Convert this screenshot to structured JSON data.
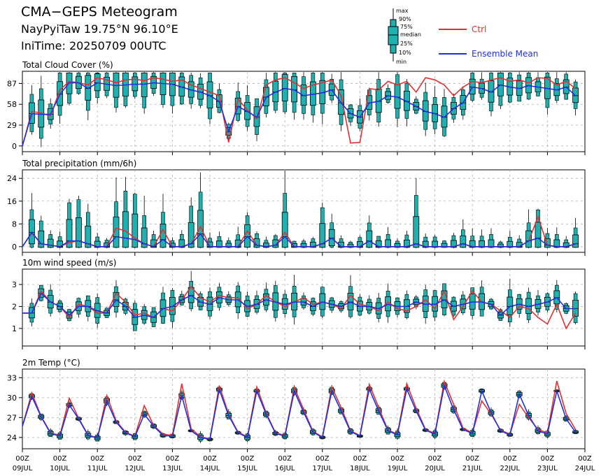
{
  "header": {
    "title": "CMA−GEPS Meteogram",
    "location": "NayPyiTaw 19.75°N 96.10°E",
    "initime": "IniTime: 20250709 00UTC"
  },
  "box_legend": {
    "labels": [
      "max",
      "90%",
      "75%",
      "median",
      "25%",
      "10%",
      "min"
    ]
  },
  "legend": [
    {
      "label": "Ctrl",
      "color": "#e03030"
    },
    {
      "label": "Ensemble Mean",
      "color": "#2030e0"
    }
  ],
  "colors": {
    "box": "#20b0b0",
    "ctrl": "#e03030",
    "mean": "#2030e0",
    "frame": "#000000",
    "grid": "#b0b0b0"
  },
  "x_axis": {
    "ticks": [
      {
        "top": "00Z",
        "bottom": "09JUL"
      },
      {
        "top": "00Z",
        "bottom": "10JUL"
      },
      {
        "top": "00Z",
        "bottom": "11JUL"
      },
      {
        "top": "00Z",
        "bottom": "12JUL"
      },
      {
        "top": "00Z",
        "bottom": "13JUL"
      },
      {
        "top": "00Z",
        "bottom": "14JUL"
      },
      {
        "top": "00Z",
        "bottom": "15JUL"
      },
      {
        "top": "00Z",
        "bottom": "16JUL"
      },
      {
        "top": "00Z",
        "bottom": "17JUL"
      },
      {
        "top": "00Z",
        "bottom": "18JUL"
      },
      {
        "top": "00Z",
        "bottom": "19JUL"
      },
      {
        "top": "00Z",
        "bottom": "20JUL"
      },
      {
        "top": "00Z",
        "bottom": "21JUL"
      },
      {
        "top": "00Z",
        "bottom": "22JUL"
      },
      {
        "top": "00Z",
        "bottom": "23JUL"
      },
      {
        "top": "00Z",
        "bottom": "24JUL"
      }
    ]
  },
  "chart_data": [
    {
      "type": "box+line",
      "title": "Total Cloud Cover (%)",
      "ylim": [
        -8,
        104
      ],
      "yticks": [
        0,
        29,
        58,
        87
      ],
      "x_start": "2025-07-09 00UTC",
      "x_step_hours": 6,
      "ctrl": [
        0,
        48,
        46,
        42,
        78,
        90,
        88,
        85,
        95,
        92,
        88,
        92,
        93,
        91,
        95,
        93,
        90,
        92,
        85,
        80,
        75,
        70,
        5,
        65,
        50,
        38,
        85,
        92,
        95,
        88,
        80,
        85,
        88,
        92,
        70,
        4,
        5,
        80,
        78,
        90,
        85,
        90,
        75,
        95,
        92,
        85,
        70,
        82,
        90,
        88,
        92,
        95,
        90,
        92,
        88,
        95,
        94,
        85,
        90,
        80
      ],
      "mean": [
        0,
        45,
        44,
        44,
        72,
        88,
        88,
        80,
        88,
        86,
        84,
        85,
        86,
        86,
        88,
        87,
        86,
        82,
        78,
        75,
        70,
        62,
        20,
        55,
        48,
        40,
        68,
        75,
        80,
        78,
        70,
        72,
        74,
        78,
        60,
        45,
        40,
        60,
        62,
        70,
        68,
        62,
        55,
        48,
        45,
        40,
        52,
        60,
        82,
        80,
        75,
        85,
        82,
        80,
        84,
        82,
        80,
        78,
        82,
        70
      ]
    },
    {
      "type": "box+line",
      "title": "Total precipitation (mm/6h)",
      "ylim": [
        -2,
        27
      ],
      "yticks": [
        0,
        8,
        16,
        24
      ],
      "x_start": "2025-07-09 00UTC",
      "x_step_hours": 6,
      "ctrl": [
        0,
        4.8,
        1,
        0.5,
        0,
        1.5,
        2,
        1,
        0,
        0,
        6.5,
        5.5,
        3,
        1,
        0,
        6,
        0,
        0,
        1,
        7,
        0,
        0,
        0,
        0,
        5.5,
        0.5,
        0,
        0.5,
        5,
        0,
        0,
        0,
        1,
        3,
        0,
        0,
        0,
        2,
        0,
        0,
        0,
        0,
        1,
        0,
        0,
        0,
        0,
        1,
        0,
        0,
        0,
        0,
        0,
        0,
        2,
        10.5,
        0.5,
        0,
        0,
        1
      ],
      "mean": [
        0,
        5,
        1,
        0.5,
        0,
        2,
        2,
        1,
        0,
        0,
        3.5,
        3,
        2.5,
        1,
        0,
        2.5,
        0,
        0,
        1,
        4.5,
        0,
        0,
        0,
        0,
        3.5,
        0.5,
        0,
        0.5,
        3.5,
        0,
        0,
        0,
        1,
        3,
        0,
        0,
        0,
        2,
        0,
        0,
        0,
        0,
        1,
        0,
        0,
        0,
        0,
        1,
        0,
        0,
        0,
        0,
        0,
        0,
        2,
        3,
        0.5,
        0,
        0,
        1
      ]
    },
    {
      "type": "box+line",
      "title": "10m wind speed (m/s)",
      "ylim": [
        0.2,
        3.7
      ],
      "yticks": [
        1,
        2,
        3
      ],
      "x_start": "2025-07-09 00UTC",
      "x_step_hours": 6,
      "ctrl": [
        1.7,
        1.7,
        2.7,
        2.2,
        2,
        1.5,
        2.1,
        2.0,
        1.7,
        1.7,
        2.6,
        2.2,
        1.6,
        1.7,
        1.5,
        1.9,
        1.8,
        2.3,
        2.9,
        2.4,
        2.2,
        2.5,
        2.4,
        2.4,
        1.9,
        2.1,
        2.5,
        2.2,
        2.0,
        2.2,
        2.4,
        2.1,
        2.2,
        2.1,
        1.9,
        2.5,
        2.1,
        2.0,
        1.8,
        2.2,
        1.9,
        1.8,
        2.0,
        2.3,
        1.9,
        2.7,
        1.4,
        2.0,
        2.7,
        2.2,
        2.1,
        1.8,
        1.5,
        2.0,
        1.9,
        1.5,
        1.2,
        2.1,
        1.0,
        1.7
      ],
      "mean": [
        1.7,
        1.7,
        2.6,
        2.2,
        2.0,
        1.6,
        2.0,
        2.0,
        1.8,
        1.7,
        2.3,
        2.0,
        1.5,
        1.6,
        1.5,
        1.9,
        2.0,
        2.3,
        2.5,
        2.2,
        2.1,
        2.4,
        2.3,
        2.3,
        2.0,
        2.1,
        2.3,
        2.2,
        2.1,
        2.2,
        2.2,
        2.0,
        2.2,
        2.1,
        2.0,
        2.2,
        2.0,
        2.0,
        1.9,
        2.1,
        2.0,
        2.0,
        2.2,
        2.1,
        2.1,
        2.3,
        2.0,
        2.1,
        2.2,
        2.2,
        2.1,
        1.6,
        2.0,
        2.1,
        2.0,
        2.1,
        2.2,
        2.4,
        1.9,
        1.9
      ]
    },
    {
      "type": "box+line",
      "title": "2m Temp (°C)",
      "ylim": [
        22.3,
        34.3
      ],
      "yticks": [
        24,
        27,
        30,
        33
      ],
      "x_start": "2025-07-09 00UTC",
      "x_step_hours": 6,
      "ctrl": [
        25.7,
        30.7,
        27.2,
        24.7,
        24.3,
        29.9,
        26.9,
        24.4,
        23.9,
        30.3,
        26.5,
        24.8,
        24.2,
        28.8,
        25.8,
        24.5,
        24.3,
        32.1,
        25.3,
        24.1,
        23.8,
        31.8,
        27.5,
        24.8,
        24.1,
        31.6,
        27.7,
        24.7,
        24.3,
        31.5,
        28.2,
        24.9,
        24.1,
        31.6,
        28.5,
        25.0,
        24.3,
        32.0,
        28.5,
        25.1,
        24.5,
        32.1,
        28.4,
        25.2,
        24.6,
        32.4,
        29.0,
        25.4,
        24.7,
        29.5,
        27.5,
        25.1,
        24.5,
        29.0,
        27.0,
        25.2,
        24.7,
        32.5,
        27.6,
        25.2
      ],
      "mean": [
        25.7,
        30.2,
        27.1,
        24.6,
        24.2,
        28.9,
        26.8,
        24.3,
        23.9,
        29.5,
        26.3,
        24.7,
        24.1,
        27.5,
        25.7,
        24.3,
        24.2,
        30.3,
        25.0,
        24.0,
        23.7,
        31.2,
        27.3,
        24.7,
        24.0,
        31.0,
        27.5,
        24.6,
        24.2,
        31.0,
        27.8,
        24.8,
        24.0,
        31.0,
        28.0,
        24.9,
        24.2,
        31.3,
        28.0,
        25.0,
        24.4,
        31.3,
        28.0,
        25.1,
        24.5,
        31.8,
        28.2,
        25.2,
        24.6,
        31.0,
        27.7,
        25.0,
        24.4,
        30.5,
        27.3,
        25.0,
        24.5,
        31.0,
        26.8,
        24.8
      ]
    }
  ]
}
